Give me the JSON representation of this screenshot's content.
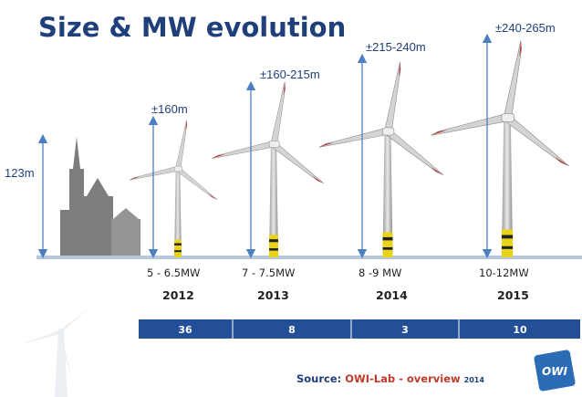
{
  "title": "Size & MW evolution",
  "reference": {
    "height": "123m"
  },
  "turbines": [
    {
      "height": "±160m",
      "power": "5 - 6.5MW",
      "year": "2012",
      "count": "36"
    },
    {
      "height": "±160-215m",
      "power": "7 - 7.5MW",
      "year": "2013",
      "count": "8"
    },
    {
      "height": "±215-240m",
      "power": "8 -9 MW",
      "year": "2014",
      "count": "3"
    },
    {
      "height": "±240-265m",
      "power": "10-12MW",
      "year": "2015",
      "count": "10"
    }
  ],
  "source": {
    "prefix": "Source:",
    "text": "OWI-Lab - overview",
    "year": "2014"
  },
  "logo": "OWI"
}
